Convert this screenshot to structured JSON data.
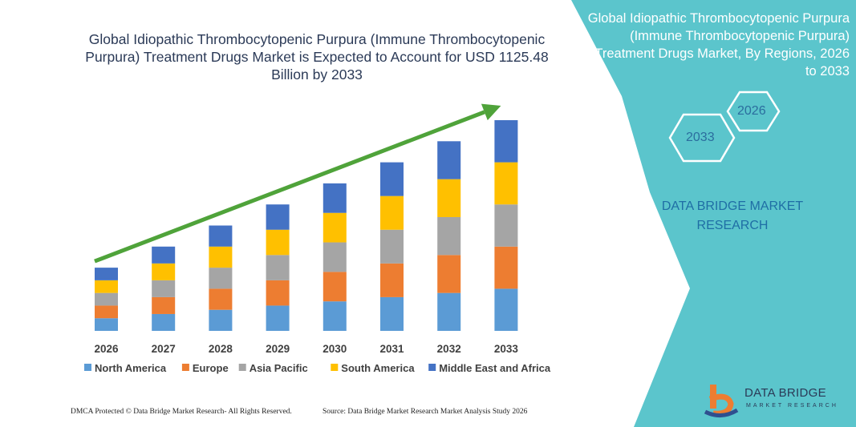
{
  "chart_data": {
    "type": "bar",
    "stacked": true,
    "title": "Global Idiopathic Thrombocytopenic Purpura (Immune Thrombocytopenic Purpura) Treatment Drugs Market is Expected to Account for USD 1125.48 Billion by 2033",
    "categories": [
      "2026",
      "2027",
      "2028",
      "2029",
      "2030",
      "2031",
      "2032",
      "2033"
    ],
    "series": [
      {
        "name": "North America",
        "color": "#5b9bd5",
        "values": [
          15,
          20,
          25,
          30,
          35,
          40,
          45,
          50
        ]
      },
      {
        "name": "Europe",
        "color": "#ed7d31",
        "values": [
          15,
          20,
          25,
          30,
          35,
          40,
          45,
          50
        ]
      },
      {
        "name": "Asia Pacific",
        "color": "#a5a5a5",
        "values": [
          15,
          20,
          25,
          30,
          35,
          40,
          45,
          50
        ]
      },
      {
        "name": "South America",
        "color": "#ffc000",
        "values": [
          15,
          20,
          25,
          30,
          35,
          40,
          45,
          50
        ]
      },
      {
        "name": "Middle East and Africa",
        "color": "#4472c4",
        "values": [
          15,
          20,
          25,
          30,
          35,
          40,
          45,
          50
        ]
      }
    ],
    "ylim": [
      0,
      250
    ],
    "grid": false,
    "legend": "bottom",
    "trend_arrow": true,
    "arrow_color": "#4fa33a"
  },
  "side_panel": {
    "title": "Global Idiopathic Thrombocytopenic Purpura (Immune Thrombocytopenic Purpura) Treatment Drugs Market, By Regions, 2026 to 2033",
    "hex_year_back": "2026",
    "hex_year_front": "2033",
    "company_line1": "DATA BRIDGE MARKET",
    "company_line2": "RESEARCH",
    "panel_color": "#5bc5cc"
  },
  "footer": {
    "left": "DMCA Protected © Data Bridge Market Research-  All Rights Reserved.",
    "right": "Source: Data Bridge Market Research  Market Analysis Study 2026"
  },
  "logo": {
    "name": "DATA BRIDGE",
    "tagline": "MARKET RESEARCH",
    "icon": "data-bridge-logo-icon"
  }
}
